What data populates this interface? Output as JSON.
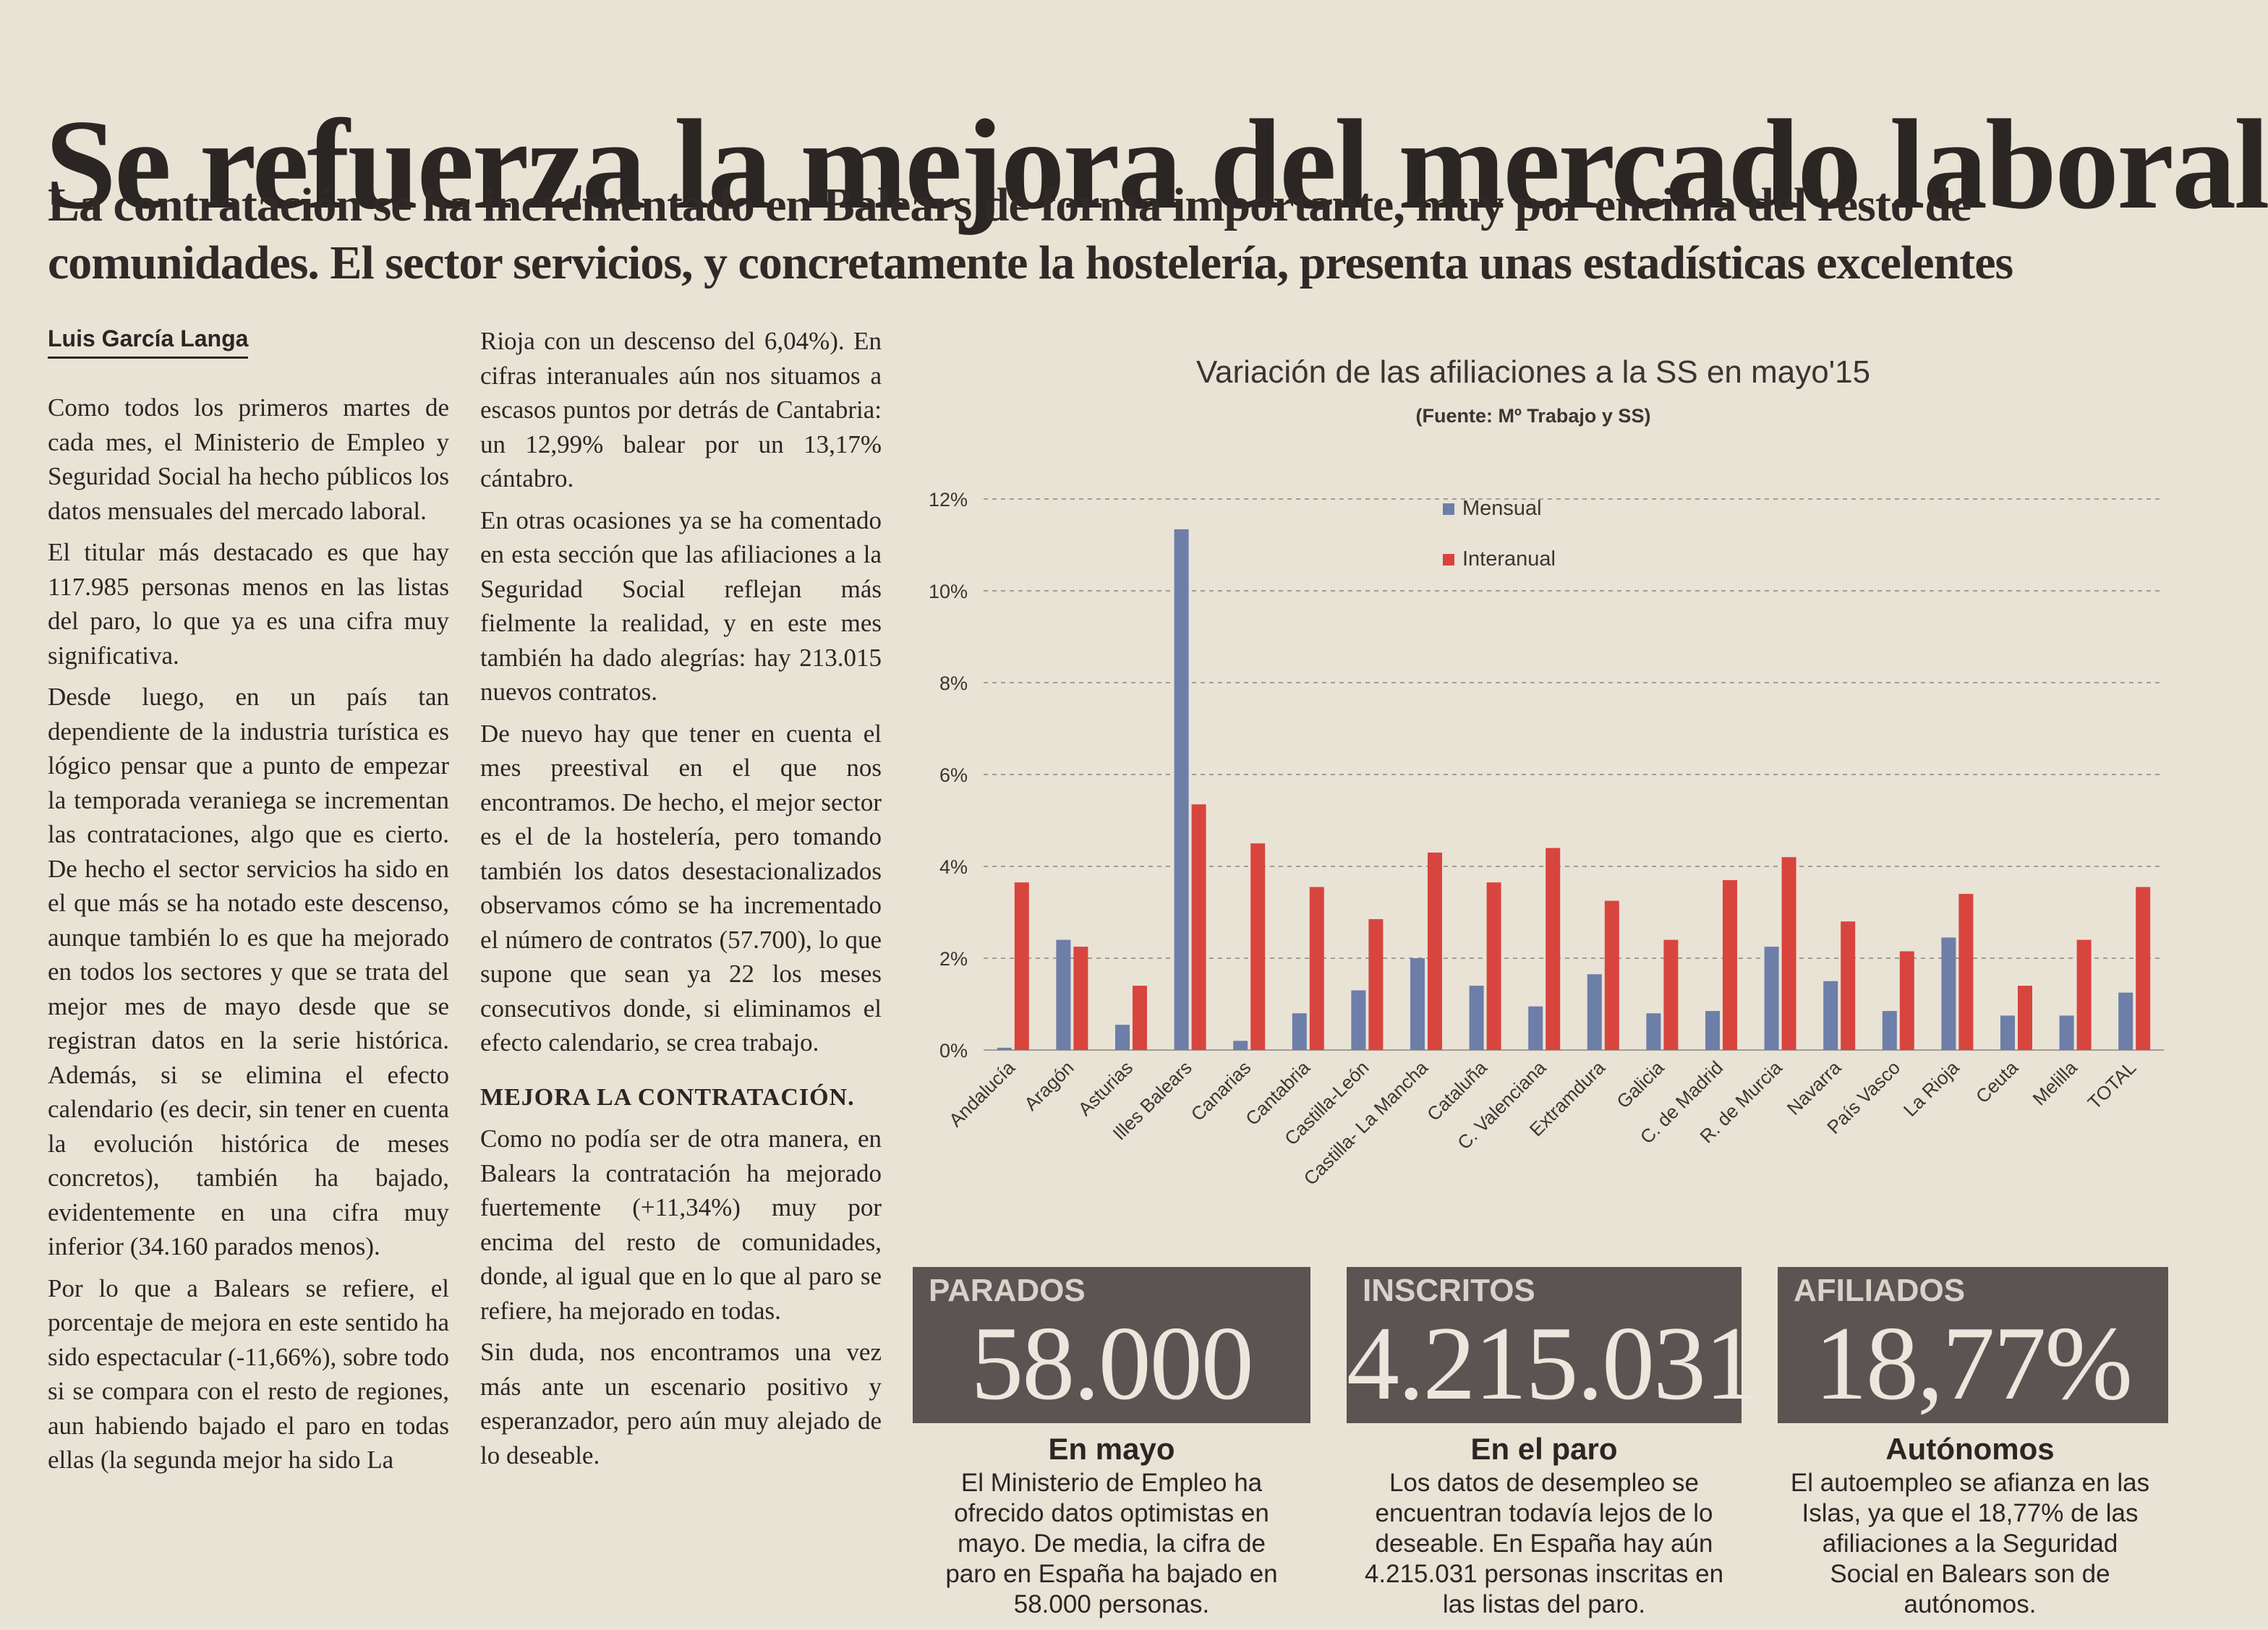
{
  "article": {
    "headline": "Se refuerza la mejora del mercado laboral",
    "deck_line1": "La contratación se ha incrementado en Balears de forma importante, muy por encima del resto de",
    "deck_line2": "comunidades. El sector servicios, y concretamente la hostelería, presenta unas estadísticas excelentes",
    "byline": "Luis García Langa",
    "col1": [
      "Como todos los primeros martes de cada mes, el Ministerio de Empleo y Seguridad Social ha hecho públicos los datos mensuales del mercado laboral.",
      "El titular más destacado es que hay 117.985 personas menos en las listas del paro, lo que ya es una cifra muy significativa.",
      "Desde luego, en un país tan dependiente de la industria turística es lógico pensar que a punto de empezar la temporada veraniega se incrementan las contrataciones, algo que es cierto. De hecho el sector servicios ha sido en el que más se ha notado este descenso, aunque también lo es que ha mejorado en todos los sectores y que se trata del mejor mes de mayo desde que se registran datos en la serie histórica. Además, si se elimina el efecto calendario (es decir, sin tener en cuenta la evolución histórica de meses concretos), también ha bajado, evidentemente en una cifra muy inferior (34.160 parados menos).",
      "Por lo que a Balears se refiere, el porcentaje de mejora en este sentido ha sido espectacular (-11,66%), sobre todo si se compara con el resto de regiones, aun habiendo bajado el paro en todas ellas (la segunda mejor ha sido La"
    ],
    "col2": [
      "Rioja con un descenso del 6,04%). En cifras interanuales aún nos situamos a escasos puntos por detrás de Cantabria: un 12,99% balear por un 13,17% cántabro.",
      "En otras ocasiones ya se ha comentado en esta sección que las afiliaciones a la Seguridad Social reflejan más fielmente la realidad, y en este mes también ha dado alegrías: hay 213.015 nuevos contratos.",
      "De nuevo hay que tener en cuenta el mes preestival en el que nos encontramos. De hecho, el mejor sector es el de la hostelería, pero tomando también los datos desestacionalizados observamos cómo se ha incrementado el número de contratos (57.700), lo que supone que sean ya 22 los meses consecutivos donde, si eliminamos el efecto calendario, se crea trabajo."
    ],
    "subhead": "MEJORA LA CONTRATACIÓN.",
    "col2_after": [
      "Como no podía ser de otra manera, en Balears la contratación ha mejorado fuertemente (+11,34%) muy por encima del resto de comunidades, donde, al igual que en lo que al paro se refiere, ha mejorado en todas.",
      "Sin duda, nos encontramos una vez más ante un escenario positivo y esperanzador, pero aún muy alejado de lo deseable."
    ]
  },
  "chart_data": {
    "type": "bar",
    "title": "Variación de las afiliaciones a la SS en mayo'15",
    "subtitle": "(Fuente: Mº Trabajo y SS)",
    "categories": [
      "Andalucía",
      "Aragón",
      "Asturias",
      "Illes Balears",
      "Canarias",
      "Cantabria",
      "Castilla-León",
      "Castilla- La Mancha",
      "Cataluña",
      "C. Valenciana",
      "Extramdura",
      "Galicia",
      "C. de Madrid",
      "R. de Murcia",
      "Navarra",
      "País Vasco",
      "La Rioja",
      "Ceuta",
      "Melilla",
      "TOTAL"
    ],
    "series": [
      {
        "name": "Mensual",
        "color": "#6d7ea8",
        "values": [
          0.05,
          2.4,
          0.55,
          11.34,
          0.2,
          0.8,
          1.3,
          2.0,
          1.4,
          0.95,
          1.65,
          0.8,
          0.85,
          2.25,
          1.5,
          0.85,
          2.45,
          0.75,
          0.75,
          1.25
        ]
      },
      {
        "name": "Interanual",
        "color": "#d8453e",
        "values": [
          3.65,
          2.25,
          1.4,
          5.35,
          4.5,
          3.55,
          2.85,
          4.3,
          3.65,
          4.4,
          3.25,
          2.4,
          3.7,
          4.2,
          2.8,
          2.15,
          3.4,
          1.4,
          2.4,
          3.55
        ]
      }
    ],
    "ylim": [
      0,
      12
    ],
    "yticks": [
      "0%",
      "2%",
      "4%",
      "6%",
      "8%",
      "10%",
      "12%"
    ],
    "grid": true,
    "legend": "top"
  },
  "boxes": [
    {
      "label": "PARADOS",
      "value": "58.000",
      "title": "En mayo",
      "desc_lines": [
        "El Ministerio de Empleo ha",
        "ofrecido datos optimistas en",
        "mayo. De media, la cifra de",
        "paro en España ha bajado en",
        "58.000 personas."
      ]
    },
    {
      "label": "INSCRITOS",
      "value": "4.215.031",
      "title": "En el paro",
      "desc_lines": [
        "Los datos de desempleo se",
        "encuentran todavía lejos de lo",
        "deseable. En España hay aún",
        "4.215.031 personas inscritas en",
        "las listas del paro."
      ]
    },
    {
      "label": "AFILIADOS",
      "value": "18,77%",
      "title": "Autónomos",
      "desc_lines": [
        "El autoempleo se afianza en las",
        "Islas, ya que el 18,77% de las",
        "afiliaciones a la Seguridad",
        "Social en Balears son de",
        "autónomos."
      ]
    }
  ]
}
